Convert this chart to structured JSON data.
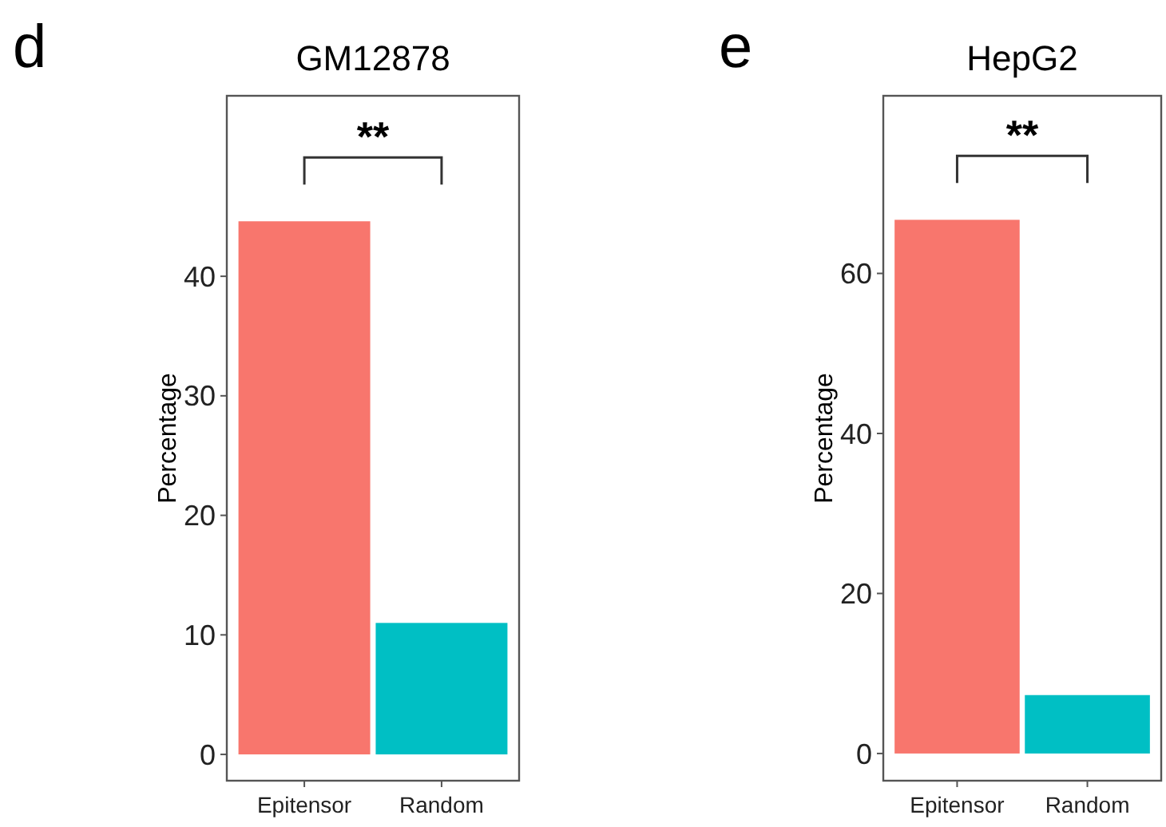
{
  "chart_data": [
    {
      "type": "bar",
      "title": "GM12878",
      "ylabel": "Percentage",
      "categories": [
        "Epitensor",
        "Random"
      ],
      "values": [
        44.6,
        11.0
      ],
      "colors": [
        "#f8766d",
        "#00bfc4"
      ],
      "ylim": [
        -2.2,
        55.1
      ],
      "yticks": [
        0,
        10,
        20,
        30,
        40
      ],
      "annotations": [
        "d",
        "**"
      ]
    },
    {
      "type": "bar",
      "title": "HepG2",
      "ylabel": "Percentage",
      "categories": [
        "Epitensor",
        "Random"
      ],
      "values": [
        66.7,
        7.3
      ],
      "colors": [
        "#f8766d",
        "#00bfc4"
      ],
      "ylim": [
        -3.4,
        82.2
      ],
      "yticks": [
        0,
        20,
        40,
        60
      ],
      "annotations": [
        "e",
        "**"
      ]
    }
  ]
}
